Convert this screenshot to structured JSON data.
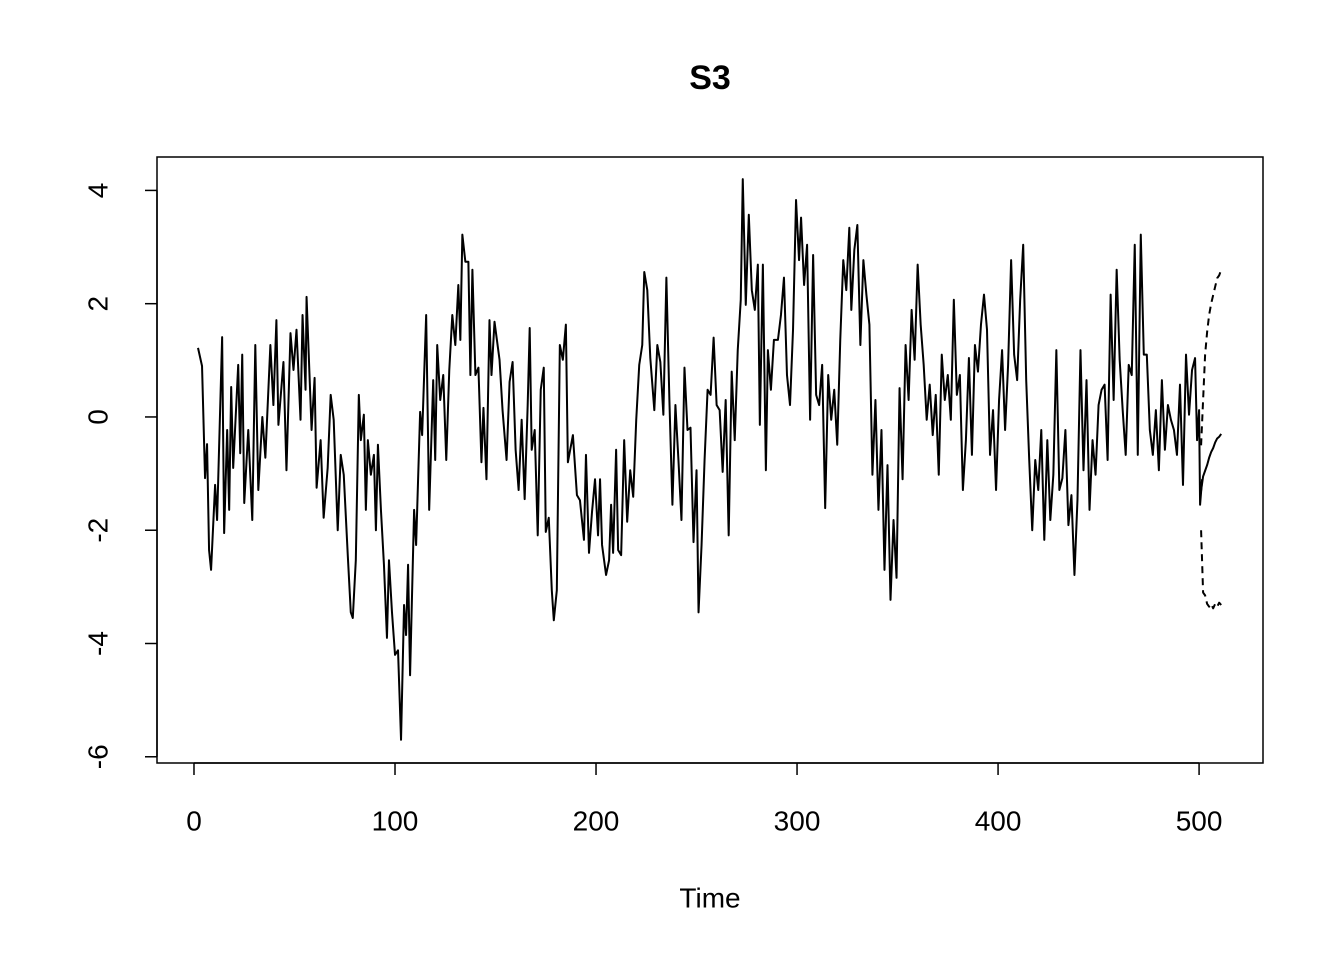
{
  "chart_data": {
    "type": "line",
    "title": "S3",
    "x_label": "Time",
    "xlim": [
      -18.4,
      531.8
    ],
    "ylim": [
      -6.11,
      4.59
    ],
    "xticks": [
      0,
      100,
      200,
      300,
      400,
      500
    ],
    "yticks": [
      -6,
      -4,
      -2,
      0,
      2,
      4
    ],
    "grid": false,
    "series": [
      {
        "color": "#000000",
        "dash": false,
        "x": [
          2,
          4,
          5.5,
          6.5,
          7.5,
          8.5,
          10.5,
          11.5,
          14,
          15,
          16.5,
          17.5,
          18.5,
          19.5,
          22,
          23,
          24,
          25,
          27,
          29,
          30.5,
          32,
          34,
          35.5,
          38,
          39.5,
          41,
          42,
          44.5,
          46,
          48,
          49.5,
          51,
          53,
          54,
          55.5,
          56,
          58.5,
          60,
          61,
          63,
          64.5,
          66.5,
          68,
          69.5,
          71.5,
          73,
          74.5,
          76.5,
          78,
          79,
          80.5,
          82,
          83,
          84.5,
          85.5,
          86.5,
          88,
          89.5,
          90.5,
          91.5,
          93,
          94.5,
          96,
          97,
          98.5,
          100,
          101.5,
          103,
          104.5,
          105.5,
          106.5,
          107.5,
          109.5,
          110.5,
          112.5,
          113.5,
          115.5,
          117,
          119,
          120,
          121,
          122.5,
          124,
          125.5,
          127,
          128.5,
          130,
          131.5,
          132.5,
          133.5,
          135,
          136.5,
          137.5,
          138.5,
          140,
          141.5,
          143,
          144,
          145.5,
          147,
          148,
          149.5,
          152,
          153.5,
          155.5,
          157,
          158.5,
          160,
          161.5,
          163,
          164.5,
          166,
          167,
          168,
          169.5,
          171,
          172.5,
          174,
          175,
          176.5,
          178,
          179,
          180.5,
          182,
          183.5,
          185,
          186,
          188.5,
          190.5,
          192,
          194,
          195,
          196.5,
          198,
          199.5,
          201,
          202,
          203,
          205,
          206.5,
          207.5,
          208.5,
          210,
          211,
          212.5,
          214,
          215.5,
          217,
          218.5,
          220,
          221.5,
          223,
          224,
          225.5,
          227,
          229,
          230.5,
          232,
          233.5,
          235,
          236.5,
          238,
          239.5,
          241,
          242.5,
          244,
          245.5,
          247,
          248.5,
          250,
          251,
          252.5,
          254,
          255.5,
          257,
          258.5,
          260,
          261.5,
          263,
          264.5,
          266,
          267.5,
          269,
          270.5,
          272,
          273,
          274.5,
          276,
          277.5,
          279,
          280.5,
          281.5,
          283,
          284.5,
          285.5,
          287,
          288.5,
          290.5,
          292,
          293.5,
          295,
          296.5,
          298,
          299.5,
          301,
          302,
          303.5,
          305,
          306.5,
          308,
          309.5,
          311,
          312.5,
          314,
          315.5,
          317,
          318.5,
          320,
          321.5,
          323,
          324.5,
          326,
          327,
          328.5,
          330,
          331.5,
          333,
          334.5,
          336,
          337.5,
          339,
          340.5,
          342,
          343.5,
          345,
          346.5,
          348,
          349.5,
          351,
          352.5,
          354,
          355.5,
          357,
          358.5,
          360,
          361.5,
          363,
          364.5,
          366,
          367.5,
          369,
          370.5,
          372,
          373.5,
          375,
          376.5,
          378,
          379.5,
          381,
          382.5,
          384,
          385.5,
          387,
          388.5,
          390,
          391.5,
          393,
          394.5,
          396,
          397.5,
          399,
          400.5,
          402,
          403.5,
          405,
          406.5,
          408,
          409.5,
          411,
          412.5,
          414,
          415.5,
          417,
          418.5,
          420,
          421.5,
          423,
          424.5,
          426,
          427.5,
          429,
          430.5,
          432,
          433.5,
          435,
          436.5,
          438,
          439.5,
          441,
          442.5,
          444,
          445.5,
          447,
          448.5,
          450,
          451.5,
          453,
          454.5,
          456,
          457.5,
          459,
          460.5,
          462,
          463.5,
          465,
          466.5,
          468,
          469.5,
          471,
          472.5,
          474,
          475.5,
          477,
          478.5,
          480,
          481.5,
          483,
          484.5,
          486,
          487.5,
          489,
          490.5,
          492,
          493.5,
          495,
          496.5,
          498,
          499,
          500,
          500.5,
          501.5
        ],
        "values": [
          1.22,
          0.9,
          -1.08,
          -0.48,
          -2.35,
          -2.7,
          -1.2,
          -1.82,
          1.41,
          -2.05,
          -0.23,
          -1.64,
          0.53,
          -0.9,
          0.92,
          -0.64,
          1.1,
          -1.52,
          -0.23,
          -1.82,
          1.27,
          -1.29,
          0,
          -0.72,
          1.27,
          0.21,
          1.71,
          -0.14,
          0.97,
          -0.94,
          1.48,
          0.83,
          1.54,
          -0.05,
          1.8,
          0.48,
          2.12,
          -0.23,
          0.69,
          -1.25,
          -0.41,
          -1.78,
          -0.9,
          0.39,
          -0.05,
          -2.0,
          -0.67,
          -1.02,
          -2.44,
          -3.45,
          -3.55,
          -2.53,
          0.39,
          -0.41,
          0.04,
          -1.64,
          -0.41,
          -1.02,
          -0.67,
          -2.0,
          -0.49,
          -1.64,
          -2.61,
          -3.9,
          -2.53,
          -3.45,
          -4.2,
          -4.12,
          -5.7,
          -3.32,
          -3.85,
          -2.61,
          -4.56,
          -1.64,
          -2.26,
          0.09,
          -0.32,
          1.8,
          -1.64,
          0.65,
          -0.76,
          1.27,
          0.3,
          0.74,
          -0.76,
          0.83,
          1.8,
          1.27,
          2.33,
          1.36,
          3.22,
          2.74,
          2.74,
          0.74,
          2.6,
          0.74,
          0.87,
          -0.8,
          0.16,
          -1.1,
          1.71,
          0.74,
          1.68,
          1.01,
          0.12,
          -0.76,
          0.62,
          0.97,
          -0.58,
          -1.29,
          -0.05,
          -1.45,
          0.21,
          1.57,
          -0.58,
          -0.23,
          -2.09,
          0.48,
          0.87,
          -2.03,
          -1.78,
          -3.06,
          -3.59,
          -3.06,
          1.27,
          1.01,
          1.63,
          -0.8,
          -0.32,
          -1.38,
          -1.47,
          -2.17,
          -0.67,
          -2.4,
          -1.68,
          -1.1,
          -2.09,
          -1.1,
          -2.26,
          -2.79,
          -2.53,
          -1.55,
          -2.4,
          -0.58,
          -2.35,
          -2.44,
          -0.41,
          -1.85,
          -0.94,
          -1.41,
          -0.05,
          0.92,
          1.27,
          2.56,
          2.24,
          1.04,
          0.12,
          1.27,
          0.97,
          0.04,
          2.46,
          0.3,
          -1.55,
          0.21,
          -0.76,
          -1.82,
          0.87,
          -0.23,
          -0.19,
          -2.21,
          -0.94,
          -3.45,
          -2.26,
          -0.76,
          0.48,
          0.39,
          1.4,
          0.21,
          0.12,
          -0.97,
          0.3,
          -2.09,
          0.8,
          -0.41,
          1.18,
          2.07,
          4.2,
          1.98,
          3.57,
          2.24,
          1.89,
          2.69,
          -0.14,
          2.69,
          -0.94,
          1.18,
          0.48,
          1.36,
          1.36,
          1.8,
          2.46,
          0.74,
          0.21,
          1.54,
          3.83,
          2.77,
          3.52,
          2.33,
          3.04,
          -0.05,
          2.86,
          0.39,
          0.21,
          0.92,
          -1.61,
          0.74,
          -0.05,
          0.48,
          -0.49,
          1.36,
          2.77,
          2.24,
          3.34,
          1.89,
          2.95,
          3.39,
          1.27,
          2.77,
          2.16,
          1.63,
          -1.02,
          0.3,
          -1.64,
          -0.23,
          -2.7,
          -0.85,
          -3.23,
          -1.82,
          -2.84,
          0.51,
          -1.1,
          1.27,
          0.3,
          1.89,
          1.01,
          2.69,
          1.63,
          0.92,
          -0.05,
          0.57,
          -0.32,
          0.39,
          -1.02,
          1.1,
          0.3,
          0.74,
          -0.05,
          2.07,
          0.39,
          0.74,
          -1.29,
          -0.41,
          1.04,
          -0.67,
          1.27,
          0.8,
          1.63,
          2.16,
          1.54,
          -0.67,
          0.12,
          -1.29,
          0.3,
          1.18,
          -0.23,
          0.92,
          2.77,
          1.1,
          0.65,
          2.07,
          3.04,
          0.65,
          -0.76,
          -2.0,
          -0.76,
          -1.29,
          -0.23,
          -2.17,
          -0.41,
          -1.82,
          -1.02,
          1.18,
          -1.29,
          -1.08,
          -0.23,
          -1.91,
          -1.38,
          -2.79,
          -1.47,
          1.18,
          -0.94,
          0.65,
          -1.64,
          -0.41,
          -1.02,
          0.21,
          0.48,
          0.57,
          -0.76,
          2.16,
          0.3,
          2.6,
          1.01,
          0.12,
          -0.67,
          0.92,
          0.74,
          3.04,
          -0.67,
          3.22,
          1.1,
          1.1,
          -0.23,
          -0.67,
          0.12,
          -0.94,
          0.65,
          -0.58,
          0.21,
          -0.05,
          -0.23,
          -0.67,
          0.57,
          -1.2,
          1.1,
          0.04,
          0.83,
          1.04,
          -0.41,
          0.12,
          -1.55,
          -1.1
        ]
      },
      {
        "color": "#000000",
        "dash": false,
        "x": [
          501,
          502,
          503,
          504,
          505,
          506,
          507,
          508,
          509,
          510,
          511
        ],
        "values": [
          -1.3,
          -1.05,
          -0.95,
          -0.85,
          -0.72,
          -0.62,
          -0.55,
          -0.45,
          -0.38,
          -0.35,
          -0.3
        ]
      },
      {
        "color": "#000000",
        "dash": true,
        "x": [
          501,
          502,
          503,
          504,
          505,
          506,
          507,
          508,
          509,
          510,
          511
        ],
        "values": [
          -0.5,
          0.3,
          1.1,
          1.5,
          1.8,
          2.0,
          2.15,
          2.3,
          2.45,
          2.5,
          2.6
        ]
      },
      {
        "color": "#000000",
        "dash": true,
        "x": [
          501,
          502,
          503,
          504,
          505,
          506,
          507,
          508,
          509,
          510,
          511
        ],
        "values": [
          -2.0,
          -3.1,
          -3.15,
          -3.3,
          -3.35,
          -3.3,
          -3.38,
          -3.3,
          -3.35,
          -3.28,
          -3.32
        ]
      }
    ]
  }
}
